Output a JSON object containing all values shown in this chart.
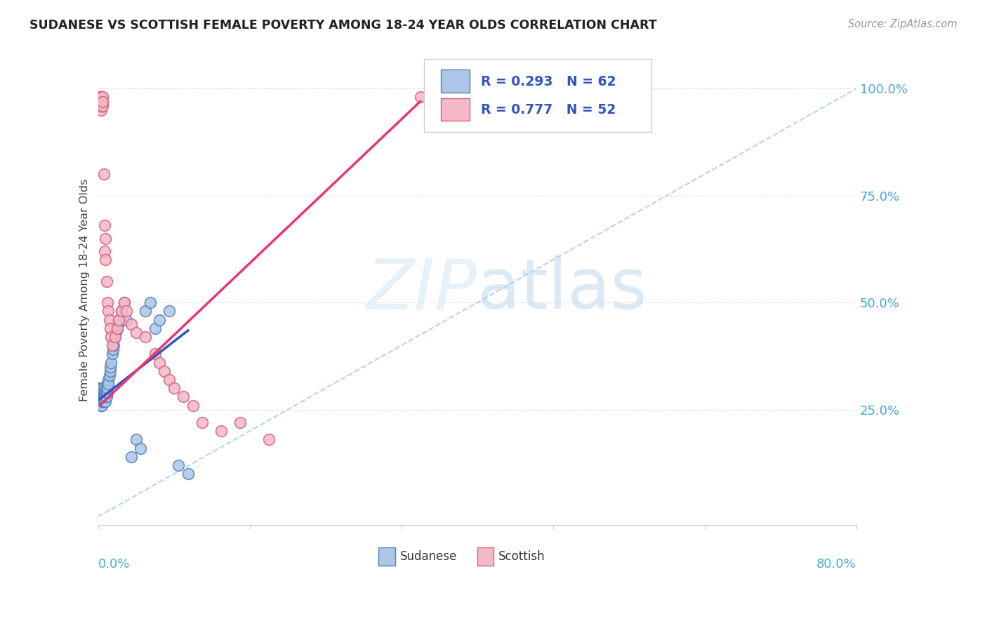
{
  "title": "SUDANESE VS SCOTTISH FEMALE POVERTY AMONG 18-24 YEAR OLDS CORRELATION CHART",
  "source": "Source: ZipAtlas.com",
  "ylabel": "Female Poverty Among 18-24 Year Olds",
  "xlim": [
    0.0,
    0.8
  ],
  "ylim": [
    -0.02,
    1.08
  ],
  "yticks": [
    0.0,
    0.25,
    0.5,
    0.75,
    1.0
  ],
  "ytick_labels": [
    "",
    "25.0%",
    "50.0%",
    "75.0%",
    "100.0%"
  ],
  "sudanese_color": "#adc6e8",
  "scottish_color": "#f5b8c8",
  "sudanese_edge": "#5580bb",
  "scottish_edge": "#d9607a",
  "trend_sudanese_color": "#3355bb",
  "trend_scottish_color": "#ee3377",
  "diagonal_color": "#b8d4e8",
  "grid_color": "#e0e0e0",
  "background_color": "#ffffff",
  "sudanese_x": [
    0.002,
    0.002,
    0.003,
    0.003,
    0.003,
    0.003,
    0.004,
    0.004,
    0.004,
    0.004,
    0.004,
    0.005,
    0.005,
    0.005,
    0.005,
    0.005,
    0.005,
    0.005,
    0.006,
    0.006,
    0.006,
    0.006,
    0.007,
    0.007,
    0.007,
    0.007,
    0.008,
    0.008,
    0.008,
    0.009,
    0.009,
    0.009,
    0.01,
    0.01,
    0.01,
    0.011,
    0.011,
    0.012,
    0.013,
    0.013,
    0.014,
    0.015,
    0.016,
    0.017,
    0.018,
    0.019,
    0.02,
    0.021,
    0.022,
    0.025,
    0.028,
    0.03,
    0.035,
    0.04,
    0.045,
    0.05,
    0.055,
    0.06,
    0.065,
    0.075,
    0.085,
    0.095
  ],
  "sudanese_y": [
    0.28,
    0.3,
    0.27,
    0.29,
    0.26,
    0.28,
    0.27,
    0.29,
    0.28,
    0.3,
    0.26,
    0.27,
    0.28,
    0.29,
    0.27,
    0.28,
    0.3,
    0.29,
    0.28,
    0.27,
    0.29,
    0.28,
    0.27,
    0.29,
    0.28,
    0.3,
    0.29,
    0.27,
    0.28,
    0.28,
    0.3,
    0.29,
    0.29,
    0.31,
    0.3,
    0.32,
    0.31,
    0.33,
    0.34,
    0.35,
    0.36,
    0.38,
    0.39,
    0.4,
    0.42,
    0.43,
    0.44,
    0.45,
    0.46,
    0.48,
    0.5,
    0.46,
    0.14,
    0.18,
    0.16,
    0.48,
    0.5,
    0.44,
    0.46,
    0.48,
    0.12,
    0.1
  ],
  "scottish_x": [
    0.002,
    0.002,
    0.002,
    0.003,
    0.003,
    0.003,
    0.003,
    0.003,
    0.003,
    0.003,
    0.004,
    0.004,
    0.004,
    0.004,
    0.004,
    0.005,
    0.005,
    0.005,
    0.005,
    0.006,
    0.007,
    0.007,
    0.008,
    0.008,
    0.009,
    0.01,
    0.011,
    0.012,
    0.013,
    0.014,
    0.015,
    0.018,
    0.02,
    0.022,
    0.025,
    0.028,
    0.03,
    0.035,
    0.04,
    0.05,
    0.06,
    0.065,
    0.07,
    0.075,
    0.08,
    0.09,
    0.1,
    0.11,
    0.13,
    0.15,
    0.18,
    0.34
  ],
  "scottish_y": [
    0.97,
    0.98,
    0.96,
    0.97,
    0.98,
    0.96,
    0.97,
    0.98,
    0.95,
    0.97,
    0.97,
    0.96,
    0.98,
    0.97,
    0.96,
    0.97,
    0.98,
    0.96,
    0.97,
    0.8,
    0.68,
    0.62,
    0.6,
    0.65,
    0.55,
    0.5,
    0.48,
    0.46,
    0.44,
    0.42,
    0.4,
    0.42,
    0.44,
    0.46,
    0.48,
    0.5,
    0.48,
    0.45,
    0.43,
    0.42,
    0.38,
    0.36,
    0.34,
    0.32,
    0.3,
    0.28,
    0.26,
    0.22,
    0.2,
    0.22,
    0.18,
    0.98
  ],
  "sudanese_trend_x": [
    0.002,
    0.095
  ],
  "sudanese_trend_y": [
    0.275,
    0.435
  ],
  "scottish_trend_x": [
    0.002,
    0.34
  ],
  "scottish_trend_y": [
    0.26,
    0.97
  ]
}
